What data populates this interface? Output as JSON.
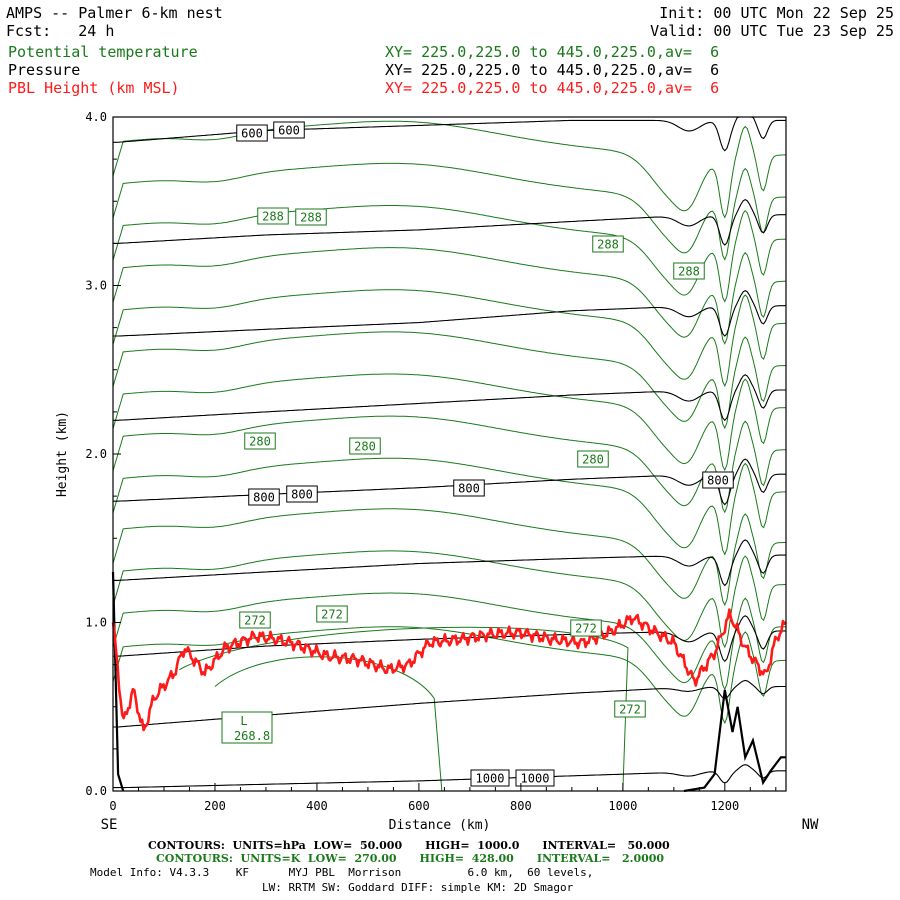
{
  "header": {
    "title": "AMPS -- Palmer 6-km nest",
    "fcst_label": "Fcst:",
    "fcst_value": "24 h",
    "init": "Init: 00 UTC Mon 22 Sep 25",
    "valid": "Valid: 00 UTC Tue 23 Sep 25",
    "fields": [
      {
        "name": "Potential temperature",
        "xy": "XY= 225.0,225.0 to 445.0,225.0,av=  6",
        "color": "#1a7a1a"
      },
      {
        "name": "Pressure",
        "xy": "XY= 225.0,225.0 to 445.0,225.0,av=  6",
        "color": "#000000"
      },
      {
        "name": "PBL Height (km MSL)",
        "xy": "XY= 225.0,225.0 to 445.0,225.0,av=  6",
        "color": "#ff1a1a"
      }
    ]
  },
  "chart_data": {
    "type": "line",
    "xlabel": "Distance (km)",
    "ylabel": "Height (km)",
    "xlim": [
      0,
      1320
    ],
    "ylim": [
      0,
      4
    ],
    "x_ticks": [
      "0",
      "200",
      "400",
      "600",
      "800",
      "1000",
      "1200"
    ],
    "y_ticks": [
      "0.0",
      "1.0",
      "2.0",
      "3.0",
      "4.0"
    ],
    "left_end": "SE",
    "right_end": "NW",
    "pressure_contours": [
      {
        "level": 1000,
        "labels": [
          "1000",
          "1000"
        ],
        "points": [
          [
            20,
            0.02
          ],
          [
            300,
            0.04
          ],
          [
            600,
            0.06
          ],
          [
            900,
            0.09
          ],
          [
            1100,
            0.11
          ],
          [
            1180,
            0.12
          ]
        ]
      },
      {
        "level": 950,
        "points": [
          [
            10,
            0.38
          ],
          [
            300,
            0.45
          ],
          [
            600,
            0.52
          ],
          [
            900,
            0.58
          ],
          [
            1150,
            0.62
          ]
        ]
      },
      {
        "level": 900,
        "points": [
          [
            10,
            0.8
          ],
          [
            300,
            0.86
          ],
          [
            600,
            0.9
          ],
          [
            900,
            0.93
          ],
          [
            1150,
            0.95
          ]
        ]
      },
      {
        "level": 850,
        "points": [
          [
            10,
            1.25
          ],
          [
            300,
            1.3
          ],
          [
            600,
            1.35
          ],
          [
            900,
            1.38
          ],
          [
            1150,
            1.4
          ]
        ]
      },
      {
        "level": 800,
        "labels": [
          "800",
          "800",
          "800",
          "800"
        ],
        "points": [
          [
            10,
            1.72
          ],
          [
            300,
            1.76
          ],
          [
            600,
            1.8
          ],
          [
            900,
            1.85
          ],
          [
            1150,
            1.88
          ]
        ]
      },
      {
        "level": 750,
        "points": [
          [
            10,
            2.2
          ],
          [
            300,
            2.25
          ],
          [
            600,
            2.3
          ],
          [
            900,
            2.35
          ],
          [
            1150,
            2.38
          ]
        ]
      },
      {
        "level": 700,
        "points": [
          [
            10,
            2.7
          ],
          [
            300,
            2.74
          ],
          [
            600,
            2.78
          ],
          [
            900,
            2.85
          ],
          [
            1150,
            2.88
          ]
        ]
      },
      {
        "level": 650,
        "points": [
          [
            10,
            3.25
          ],
          [
            300,
            3.3
          ],
          [
            600,
            3.33
          ],
          [
            900,
            3.38
          ],
          [
            1150,
            3.42
          ]
        ]
      },
      {
        "level": 600,
        "labels": [
          "600",
          "600"
        ],
        "points": [
          [
            10,
            3.85
          ],
          [
            300,
            3.92
          ],
          [
            600,
            3.95
          ],
          [
            900,
            3.98
          ]
        ]
      }
    ],
    "theta_contours": [
      {
        "level": 268.8,
        "type": "low",
        "label": "L",
        "value_label": "268.8"
      },
      {
        "level": 272,
        "labels": [
          "272",
          "272",
          "272",
          "272"
        ]
      },
      {
        "level": 280,
        "labels": [
          "280",
          "280",
          "280"
        ]
      },
      {
        "level": 288,
        "labels": [
          "288",
          "288",
          "288",
          "288"
        ]
      }
    ],
    "pbl_height": {
      "name": "PBL Height (km MSL)",
      "points": [
        [
          0,
          1.0
        ],
        [
          20,
          0.4
        ],
        [
          40,
          0.6
        ],
        [
          60,
          0.35
        ],
        [
          80,
          0.55
        ],
        [
          120,
          0.7
        ],
        [
          140,
          0.85
        ],
        [
          180,
          0.7
        ],
        [
          220,
          0.85
        ],
        [
          280,
          0.92
        ],
        [
          320,
          0.9
        ],
        [
          360,
          0.87
        ],
        [
          420,
          0.8
        ],
        [
          480,
          0.78
        ],
        [
          540,
          0.72
        ],
        [
          580,
          0.75
        ],
        [
          620,
          0.88
        ],
        [
          680,
          0.9
        ],
        [
          740,
          0.93
        ],
        [
          800,
          0.94
        ],
        [
          860,
          0.9
        ],
        [
          920,
          0.88
        ],
        [
          980,
          0.95
        ],
        [
          1020,
          1.03
        ],
        [
          1060,
          0.95
        ],
        [
          1100,
          0.88
        ],
        [
          1140,
          0.65
        ],
        [
          1180,
          0.82
        ],
        [
          1210,
          1.05
        ],
        [
          1240,
          0.85
        ],
        [
          1280,
          0.68
        ],
        [
          1300,
          0.9
        ],
        [
          1320,
          1.0
        ]
      ]
    }
  },
  "footer": {
    "line1": "CONTOURS:  UNITS=hPa  LOW=  50.000      HIGH=  1000.0      INTERVAL=   50.000",
    "line2": "CONTOURS:  UNITS=K  LOW=  270.00      HIGH=  428.00      INTERVAL=   2.0000",
    "line3": "Model Info: V4.3.3    KF      MYJ PBL  Morrison          6.0 km,  60 levels,",
    "line4": "LW: RRTM SW: Goddard DIFF: simple KM: 2D Smagor"
  }
}
